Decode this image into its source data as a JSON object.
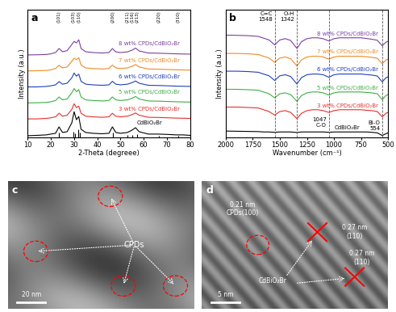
{
  "chart_data": [
    {
      "type": "line",
      "panel": "a",
      "xlabel": "2-Theta (degreee)",
      "ylabel": "Intensity (a.u.)",
      "xlim": [
        10,
        80
      ],
      "xticks": [
        10,
        20,
        30,
        40,
        50,
        60,
        70,
        80
      ],
      "ylim": [
        0,
        8
      ],
      "tick_labels": "x",
      "x": [
        10,
        14,
        18,
        20,
        22,
        23.5,
        25,
        27,
        29,
        30,
        31,
        32,
        33,
        35,
        38,
        42,
        45,
        46.5,
        48,
        50,
        53,
        55,
        56.5,
        58,
        62,
        66,
        70,
        74,
        77,
        80
      ],
      "series": [
        {
          "name": "CdBiO₂Br",
          "color": "#000000",
          "values": [
            0.1,
            0.12,
            0.15,
            0.2,
            0.25,
            0.65,
            0.3,
            0.35,
            0.9,
            1.6,
            1.1,
            1.3,
            0.5,
            0.3,
            0.25,
            0.22,
            0.25,
            0.65,
            0.3,
            0.25,
            0.3,
            0.45,
            0.6,
            0.35,
            0.2,
            0.2,
            0.18,
            0.15,
            0.15,
            0.12
          ]
        },
        {
          "name": "3 wt% CPDs/CdBiO₂Br",
          "color": "#e8302a",
          "values": [
            1.15,
            1.15,
            1.18,
            1.22,
            1.28,
            1.5,
            1.32,
            1.38,
            1.75,
            2.1,
            1.85,
            1.95,
            1.5,
            1.32,
            1.28,
            1.25,
            1.28,
            1.5,
            1.32,
            1.28,
            1.32,
            1.42,
            1.52,
            1.38,
            1.25,
            1.24,
            1.22,
            1.2,
            1.19,
            1.18
          ]
        },
        {
          "name": "5 wt% CPDs/CdBiO₂Br",
          "color": "#3cb043",
          "values": [
            2.15,
            2.16,
            2.18,
            2.22,
            2.3,
            2.52,
            2.34,
            2.4,
            2.78,
            3.05,
            2.85,
            2.98,
            2.52,
            2.34,
            2.3,
            2.27,
            2.3,
            2.52,
            2.34,
            2.3,
            2.34,
            2.44,
            2.55,
            2.4,
            2.27,
            2.26,
            2.24,
            2.22,
            2.21,
            2.2
          ]
        },
        {
          "name": "6 wt% CPDs/CdBiO₂Br",
          "color": "#1f3fbf",
          "values": [
            3.15,
            3.15,
            3.18,
            3.22,
            3.28,
            3.48,
            3.32,
            3.38,
            3.72,
            4.02,
            3.82,
            3.95,
            3.5,
            3.32,
            3.28,
            3.25,
            3.28,
            3.5,
            3.32,
            3.28,
            3.32,
            3.42,
            3.52,
            3.38,
            3.25,
            3.24,
            3.22,
            3.2,
            3.19,
            3.18
          ]
        },
        {
          "name": "7 wt% CPDs/CdBiO₂Br",
          "color": "#f08a24",
          "values": [
            4.15,
            4.16,
            4.18,
            4.22,
            4.3,
            4.5,
            4.34,
            4.4,
            4.75,
            4.95,
            4.85,
            4.98,
            4.52,
            4.34,
            4.3,
            4.27,
            4.3,
            4.52,
            4.34,
            4.3,
            4.34,
            4.44,
            4.55,
            4.4,
            4.27,
            4.26,
            4.24,
            4.22,
            4.21,
            4.2
          ]
        },
        {
          "name": "8 wt% CPDs/CdBiO₂Br",
          "color": "#7b3fa0",
          "values": [
            5.15,
            5.16,
            5.18,
            5.22,
            5.3,
            5.55,
            5.35,
            5.42,
            5.8,
            6.0,
            5.9,
            6.1,
            5.55,
            5.35,
            5.3,
            5.27,
            5.3,
            5.55,
            5.34,
            5.3,
            5.34,
            5.45,
            5.58,
            5.4,
            5.27,
            5.26,
            5.24,
            5.22,
            5.21,
            5.2
          ]
        }
      ],
      "reference_pattern": {
        "x": [
          23.5,
          29.8,
          30.5,
          31.8,
          32.3,
          46.6,
          53.0,
          55.0,
          57.2,
          66.5,
          75.0
        ],
        "values": [
          0.3,
          0.35,
          0.25,
          0.5,
          0.3,
          0.3,
          0.12,
          0.15,
          0.2,
          0.1,
          0.08
        ]
      },
      "peaks": [
        {
          "x": 23.5,
          "label": "(101)"
        },
        {
          "x": 29.8,
          "label": "(103)"
        },
        {
          "x": 32.0,
          "label": "(110)"
        },
        {
          "x": 46.6,
          "label": "(200)"
        },
        {
          "x": 53.0,
          "label": "(211)"
        },
        {
          "x": 55.0,
          "label": "(116)"
        },
        {
          "x": 57.2,
          "label": "(213)"
        },
        {
          "x": 66.5,
          "label": "(220)"
        },
        {
          "x": 75.0,
          "label": "(310)"
        }
      ]
    },
    {
      "type": "line",
      "panel": "b",
      "xlabel": "Wavenumber (cm⁻¹)",
      "ylabel": "Intensity (a.u.)",
      "xlim": [
        2000,
        500
      ],
      "xticks": [
        2000,
        1750,
        1500,
        1250,
        1000,
        750,
        500
      ],
      "ylim": [
        0,
        7.2
      ],
      "tick_labels": "x",
      "x": [
        2000,
        1900,
        1800,
        1700,
        1650,
        1600,
        1548,
        1500,
        1450,
        1400,
        1342,
        1300,
        1250,
        1200,
        1150,
        1100,
        1047,
        1000,
        950,
        900,
        850,
        800,
        750,
        700,
        650,
        600,
        554,
        520,
        500
      ],
      "series": [
        {
          "name": "CdBiO₂Br",
          "color": "#000000",
          "values": [
            0.35,
            0.34,
            0.33,
            0.32,
            0.3,
            0.3,
            0.28,
            0.3,
            0.3,
            0.3,
            0.27,
            0.3,
            0.3,
            0.3,
            0.3,
            0.3,
            0.28,
            0.3,
            0.3,
            0.3,
            0.3,
            0.3,
            0.3,
            0.3,
            0.28,
            0.25,
            0.1,
            0.2,
            0.25
          ]
        },
        {
          "name": "3 wt% CPDs/CdBiO₂Br",
          "color": "#e8302a",
          "values": [
            1.7,
            1.7,
            1.68,
            1.65,
            1.55,
            1.45,
            1.25,
            1.45,
            1.5,
            1.4,
            1.05,
            1.35,
            1.5,
            1.55,
            1.55,
            1.5,
            1.4,
            1.5,
            1.55,
            1.55,
            1.55,
            1.55,
            1.55,
            1.52,
            1.5,
            1.45,
            1.15,
            1.35,
            1.4
          ]
        },
        {
          "name": "5 wt% CPDs/CdBiO₂Br",
          "color": "#3cb043",
          "values": [
            2.7,
            2.7,
            2.68,
            2.65,
            2.55,
            2.45,
            2.22,
            2.45,
            2.5,
            2.4,
            2.02,
            2.35,
            2.5,
            2.55,
            2.55,
            2.5,
            2.38,
            2.5,
            2.55,
            2.55,
            2.55,
            2.55,
            2.55,
            2.52,
            2.5,
            2.45,
            2.12,
            2.35,
            2.4
          ]
        },
        {
          "name": "6 wt% CPDs/CdBiO₂Br",
          "color": "#1f3fbf",
          "values": [
            3.72,
            3.72,
            3.7,
            3.66,
            3.56,
            3.46,
            3.2,
            3.46,
            3.52,
            3.42,
            3.0,
            3.36,
            3.52,
            3.56,
            3.56,
            3.52,
            3.38,
            3.52,
            3.56,
            3.56,
            3.56,
            3.56,
            3.56,
            3.53,
            3.5,
            3.45,
            3.12,
            3.35,
            3.4
          ]
        },
        {
          "name": "7 wt% CPDs/CdBiO₂Br",
          "color": "#f08a24",
          "values": [
            4.72,
            4.72,
            4.7,
            4.66,
            4.56,
            4.46,
            4.22,
            4.46,
            4.52,
            4.42,
            4.02,
            4.36,
            4.52,
            4.56,
            4.56,
            4.52,
            4.4,
            4.52,
            4.56,
            4.56,
            4.56,
            4.56,
            4.56,
            4.53,
            4.5,
            4.45,
            4.14,
            4.35,
            4.4
          ]
        },
        {
          "name": "8 wt% CPDs/CdBiO₂Br",
          "color": "#7b3fa0",
          "values": [
            5.75,
            5.74,
            5.72,
            5.68,
            5.58,
            5.48,
            5.2,
            5.48,
            5.55,
            5.45,
            5.0,
            5.38,
            5.55,
            5.6,
            5.6,
            5.55,
            5.42,
            5.55,
            5.6,
            5.6,
            5.6,
            5.6,
            5.6,
            5.56,
            5.52,
            5.46,
            5.15,
            5.35,
            5.4
          ]
        }
      ],
      "marker_lines": [
        {
          "x": 1548,
          "label": "C=C\n1548"
        },
        {
          "x": 1342,
          "label": "O-H\n1342"
        },
        {
          "x": 1047,
          "label": "1047\nC-O"
        },
        {
          "x": 554,
          "label": "Bi-O\n554"
        }
      ]
    },
    {
      "type": "image",
      "panel": "c",
      "labels": [
        "CPDs"
      ],
      "scale_bar": "20 nm"
    },
    {
      "type": "image",
      "panel": "d",
      "labels": [
        "0.21 nm\nCPDs(100)",
        "0.27 nm\n(110)",
        "CdBiO₂Br",
        "0.27 nm\n(110)"
      ],
      "scale_bar": "5 nm"
    }
  ]
}
